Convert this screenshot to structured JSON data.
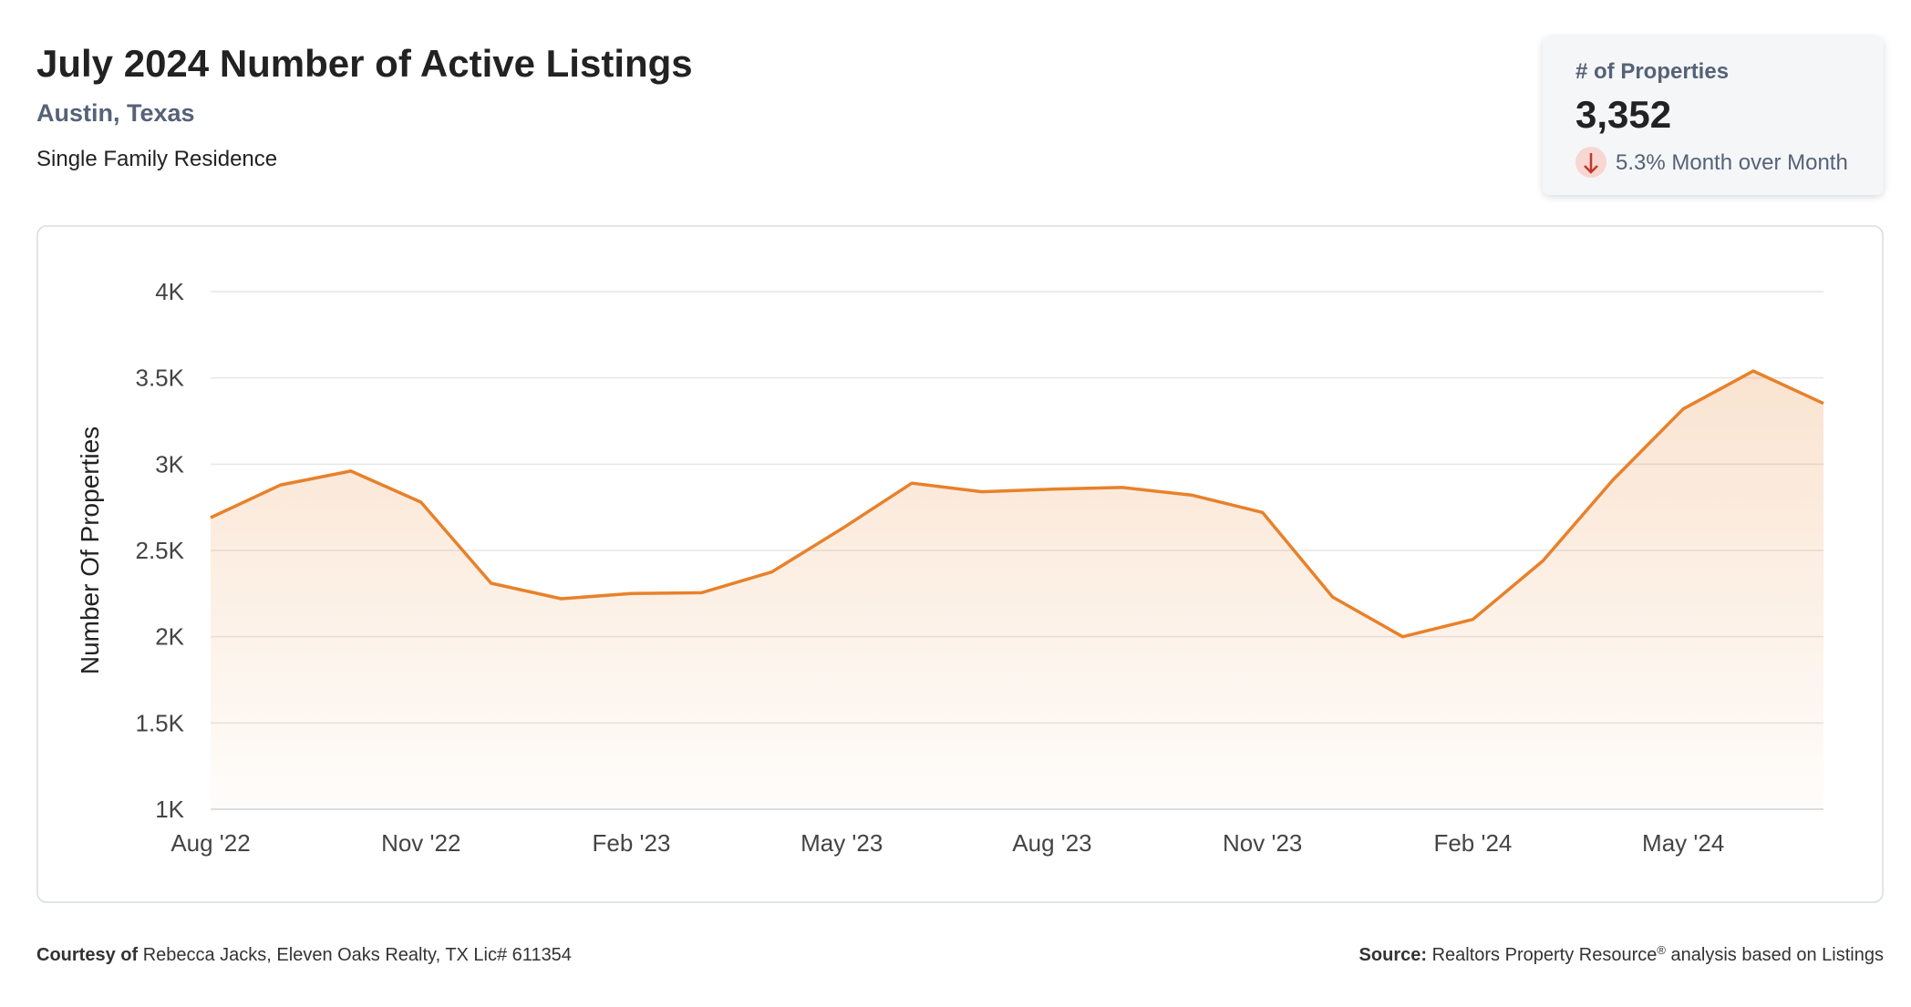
{
  "chart_data": {
    "type": "area",
    "title": "July 2024 Number of Active Listings",
    "subtitle": "Austin, Texas",
    "property_type": "Single Family Residence",
    "y_label": "Number Of Properties",
    "categories": [
      "Aug '22",
      null,
      null,
      "Nov '22",
      null,
      null,
      "Feb '23",
      null,
      null,
      "May '23",
      null,
      null,
      "Aug '23",
      null,
      null,
      "Nov '23",
      null,
      null,
      "Feb '24",
      null,
      null,
      "May '24",
      null,
      null
    ],
    "values": [
      2690,
      2880,
      2960,
      2780,
      2310,
      2220,
      2250,
      2255,
      2375,
      2625,
      2890,
      2840,
      2855,
      2865,
      2820,
      2720,
      2230,
      2000,
      2100,
      2440,
      2910,
      3320,
      3540,
      3352
    ],
    "color": "#e8812a",
    "ylim": [
      1000,
      4000
    ],
    "yticks": [
      {
        "value": 1000,
        "label": "1K"
      },
      {
        "value": 1500,
        "label": "1.5K"
      },
      {
        "value": 2000,
        "label": "2K"
      },
      {
        "value": 2500,
        "label": "2.5K"
      },
      {
        "value": 3000,
        "label": "3K"
      },
      {
        "value": 3500,
        "label": "3.5K"
      },
      {
        "value": 4000,
        "label": "4K"
      }
    ],
    "grid": true
  },
  "card": {
    "label": "# of Properties",
    "value": "3,352",
    "change": "5.3% Month over Month"
  },
  "footer": {
    "courtesy_label": "Courtesy of",
    "courtesy": "Rebecca Jacks, Eleven Oaks Realty, TX Lic# 611354",
    "source_label": "Source:",
    "source": "Realtors Property Resource",
    "source_mark": "®",
    "source_rest": " analysis based on Listings"
  }
}
